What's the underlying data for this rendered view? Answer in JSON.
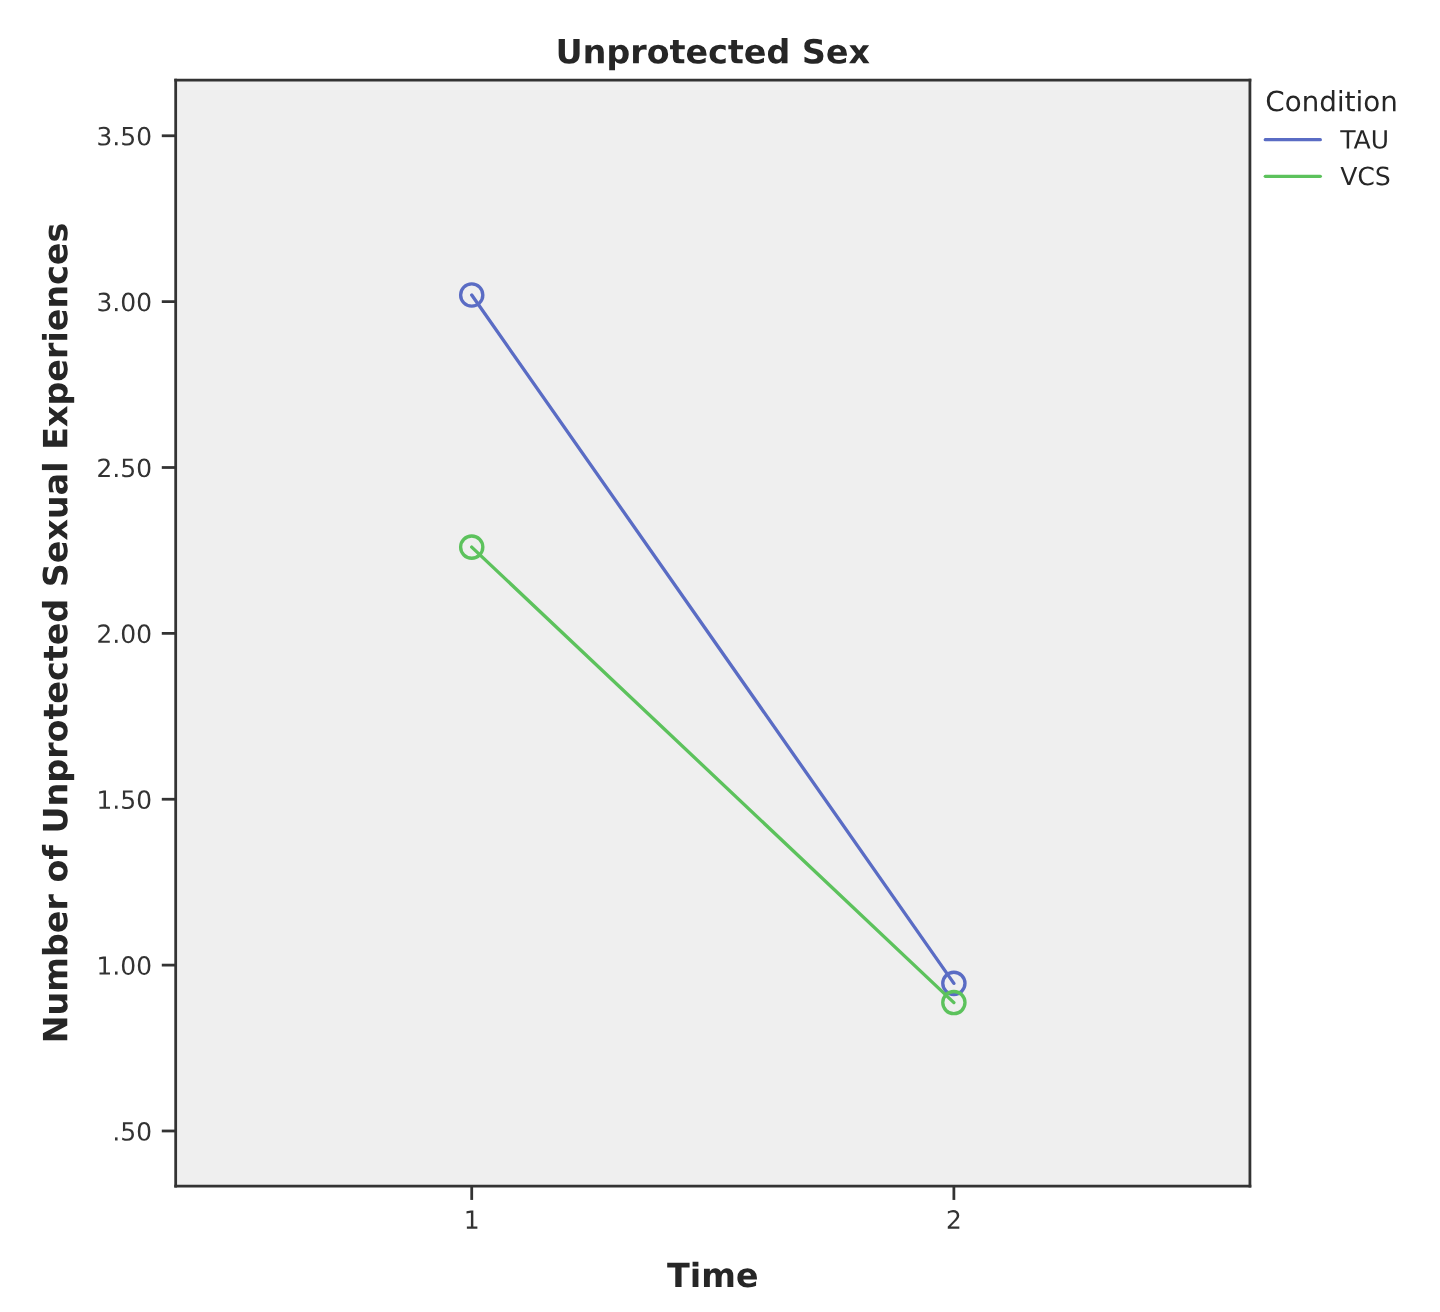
{
  "chart_data": {
    "type": "line",
    "title": "Unprotected Sex",
    "xlabel": "Time",
    "ylabel": "Number of Unprotected Sexual Experiences",
    "legend_title": "Condition",
    "categories": [
      "1",
      "2"
    ],
    "series": [
      {
        "name": "TAU",
        "color": "#5a6cc4",
        "values": [
          3.02,
          0.945
        ]
      },
      {
        "name": "VCS",
        "color": "#5cc25c",
        "values": [
          2.26,
          0.887
        ]
      }
    ],
    "ylim": [
      0.334,
      3.668
    ],
    "yticks": [
      {
        "value": 0.5,
        "label": ".50"
      },
      {
        "value": 1.0,
        "label": "1.00"
      },
      {
        "value": 1.5,
        "label": "1.50"
      },
      {
        "value": 2.0,
        "label": "2.00"
      },
      {
        "value": 2.5,
        "label": "2.50"
      },
      {
        "value": 3.0,
        "label": "3.00"
      },
      {
        "value": 3.5,
        "label": "3.50"
      }
    ],
    "grid": false,
    "legend": "top right",
    "marker": "circle",
    "line_style": "solid"
  }
}
